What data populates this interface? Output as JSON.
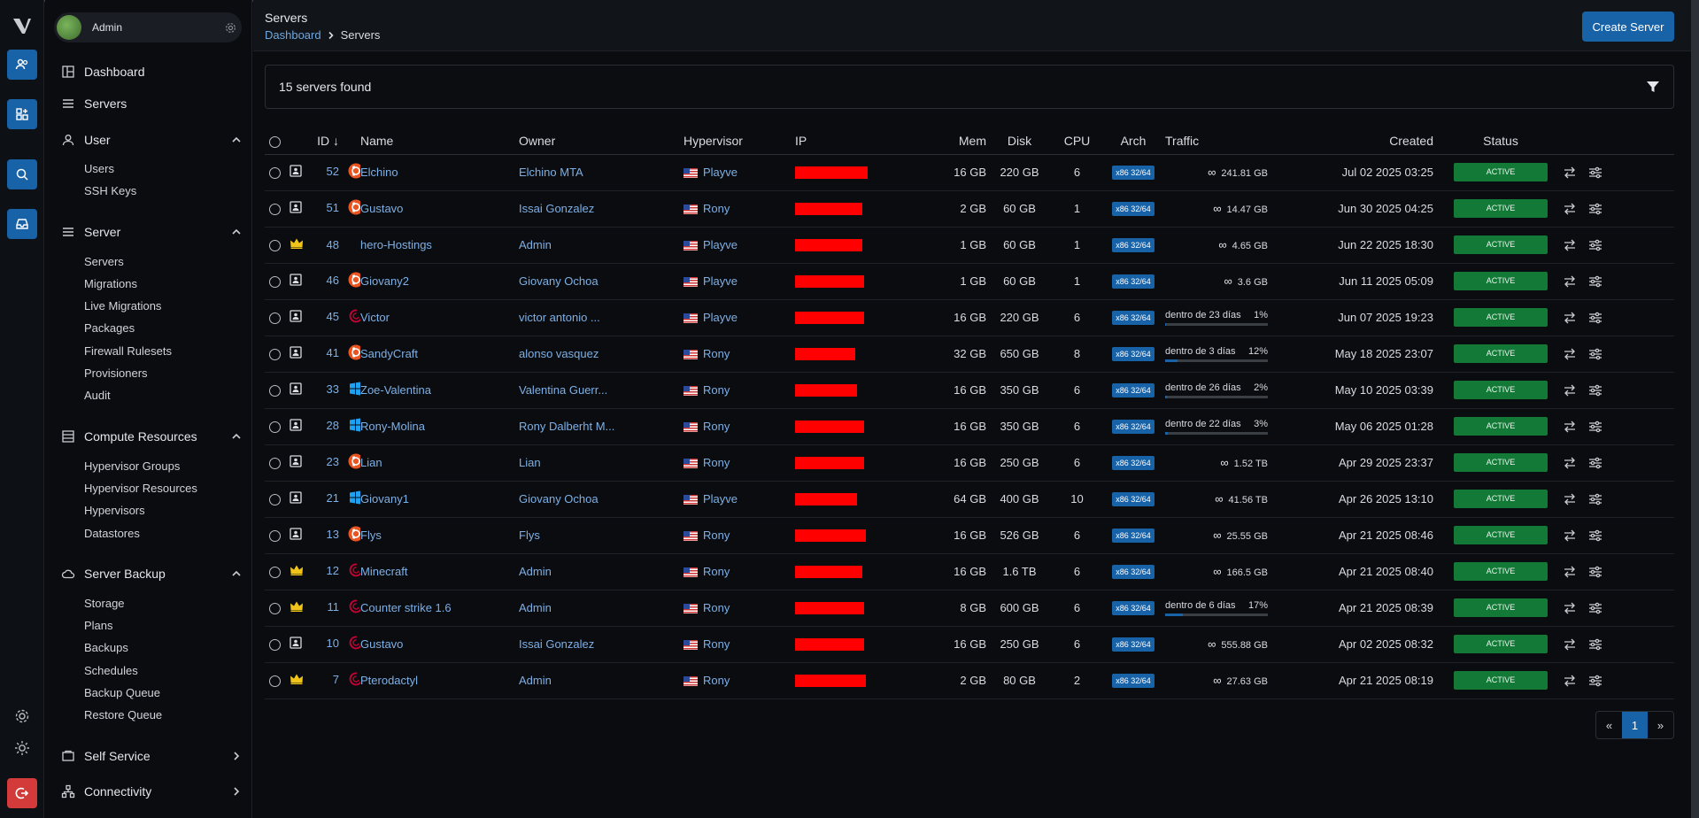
{
  "profile": {
    "name": "Admin"
  },
  "nav": {
    "dashboard": "Dashboard",
    "servers": "Servers",
    "user_section": {
      "label": "User",
      "items": [
        "Users",
        "SSH Keys"
      ]
    },
    "server_section": {
      "label": "Server",
      "items": [
        "Servers",
        "Migrations",
        "Live Migrations",
        "Packages",
        "Firewall Rulesets",
        "Provisioners",
        "Audit"
      ]
    },
    "compute_section": {
      "label": "Compute Resources",
      "items": [
        "Hypervisor Groups",
        "Hypervisor Resources",
        "Hypervisors",
        "Datastores"
      ]
    },
    "backup_section": {
      "label": "Server Backup",
      "items": [
        "Storage",
        "Plans",
        "Backups",
        "Schedules",
        "Backup Queue",
        "Restore Queue"
      ]
    },
    "self_service": "Self Service",
    "connectivity": "Connectivity"
  },
  "header": {
    "title": "Servers",
    "breadcrumb": [
      "Dashboard",
      "Servers"
    ],
    "create_label": "Create Server"
  },
  "filter": {
    "count_text": "15 servers found"
  },
  "table": {
    "columns": {
      "id": "ID",
      "name": "Name",
      "owner": "Owner",
      "hypervisor": "Hypervisor",
      "ip": "IP",
      "mem": "Mem",
      "disk": "Disk",
      "cpu": "CPU",
      "arch": "Arch",
      "traffic": "Traffic",
      "created": "Created",
      "status": "Status"
    },
    "rows": [
      {
        "type": "user",
        "id": "52",
        "os": "ubuntu",
        "name": "Elchino",
        "owner": "Elchino MTA",
        "hv": "Playve",
        "ipw": 82,
        "mem": "16 GB",
        "disk": "220 GB",
        "cpu": "6",
        "arch": "x86 32/64",
        "inf": "∞",
        "traffic": "241.81 GB",
        "created": "Jul 02 2025 03:25",
        "status": "ACTIVE"
      },
      {
        "type": "user",
        "id": "51",
        "os": "ubuntu",
        "name": "Gustavo",
        "owner": "Issai Gonzalez",
        "hv": "Rony",
        "ipw": 76,
        "mem": "2 GB",
        "disk": "60 GB",
        "cpu": "1",
        "arch": "x86 32/64",
        "inf": "∞",
        "traffic": "14.47 GB",
        "created": "Jun 30 2025 04:25",
        "status": "ACTIVE"
      },
      {
        "type": "crown",
        "id": "48",
        "os": "none",
        "name": "hero-Hostings",
        "owner": "Admin",
        "hv": "Playve",
        "ipw": 76,
        "mem": "1 GB",
        "disk": "60 GB",
        "cpu": "1",
        "arch": "x86 32/64",
        "inf": "∞",
        "traffic": "4.65 GB",
        "created": "Jun 22 2025 18:30",
        "status": "ACTIVE"
      },
      {
        "type": "user",
        "id": "46",
        "os": "ubuntu",
        "name": "Giovany2",
        "owner": "Giovany Ochoa",
        "hv": "Playve",
        "ipw": 78,
        "mem": "1 GB",
        "disk": "60 GB",
        "cpu": "1",
        "arch": "x86 32/64",
        "inf": "∞",
        "traffic": "3.6 GB",
        "created": "Jun 11 2025 05:09",
        "status": "ACTIVE"
      },
      {
        "type": "user",
        "id": "45",
        "os": "debian",
        "name": "Victor",
        "owner": "victor antonio ...",
        "hv": "Playve",
        "ipw": 78,
        "mem": "16 GB",
        "disk": "220 GB",
        "cpu": "6",
        "arch": "x86 32/64",
        "inf": "",
        "traffic": "",
        "tlabel": "dentro de 23 días",
        "tpct": "1%",
        "tfill": 1,
        "created": "Jun 07 2025 19:23",
        "status": "ACTIVE"
      },
      {
        "type": "user",
        "id": "41",
        "os": "ubuntu",
        "name": "SandyCraft",
        "owner": "alonso vasquez",
        "hv": "Rony",
        "ipw": 68,
        "mem": "32 GB",
        "disk": "650 GB",
        "cpu": "8",
        "arch": "x86 32/64",
        "inf": "",
        "traffic": "",
        "tlabel": "dentro de 3 días",
        "tpct": "12%",
        "tfill": 12,
        "created": "May 18 2025 23:07",
        "status": "ACTIVE"
      },
      {
        "type": "user",
        "id": "33",
        "os": "windows",
        "name": "Zoe-Valentina",
        "owner": "Valentina Guerr...",
        "hv": "Rony",
        "ipw": 70,
        "mem": "16 GB",
        "disk": "350 GB",
        "cpu": "6",
        "arch": "x86 32/64",
        "inf": "",
        "traffic": "",
        "tlabel": "dentro de 26 días",
        "tpct": "2%",
        "tfill": 2,
        "created": "May 10 2025 03:39",
        "status": "ACTIVE"
      },
      {
        "type": "user",
        "id": "28",
        "os": "windows",
        "name": "Rony-Molina",
        "owner": "Rony Dalberht M...",
        "hv": "Rony",
        "ipw": 78,
        "mem": "16 GB",
        "disk": "350 GB",
        "cpu": "6",
        "arch": "x86 32/64",
        "inf": "",
        "traffic": "",
        "tlabel": "dentro de 22 días",
        "tpct": "3%",
        "tfill": 3,
        "created": "May 06 2025 01:28",
        "status": "ACTIVE"
      },
      {
        "type": "user",
        "id": "23",
        "os": "ubuntu",
        "name": "Lian",
        "owner": "Lian",
        "hv": "Rony",
        "ipw": 78,
        "mem": "16 GB",
        "disk": "250 GB",
        "cpu": "6",
        "arch": "x86 32/64",
        "inf": "∞",
        "traffic": "1.52 TB",
        "created": "Apr 29 2025 23:37",
        "status": "ACTIVE"
      },
      {
        "type": "user",
        "id": "21",
        "os": "windows",
        "name": "Giovany1",
        "owner": "Giovany Ochoa",
        "hv": "Playve",
        "ipw": 70,
        "mem": "64 GB",
        "disk": "400 GB",
        "cpu": "10",
        "arch": "x86 32/64",
        "inf": "∞",
        "traffic": "41.56 TB",
        "created": "Apr 26 2025 13:10",
        "status": "ACTIVE"
      },
      {
        "type": "user",
        "id": "13",
        "os": "ubuntu",
        "name": "Flys",
        "owner": "Flys",
        "hv": "Rony",
        "ipw": 80,
        "mem": "16 GB",
        "disk": "526 GB",
        "cpu": "6",
        "arch": "x86 32/64",
        "inf": "∞",
        "traffic": "25.55 GB",
        "created": "Apr 21 2025 08:46",
        "status": "ACTIVE"
      },
      {
        "type": "crown",
        "id": "12",
        "os": "debian",
        "name": "Minecraft",
        "owner": "Admin",
        "hv": "Rony",
        "ipw": 76,
        "mem": "16 GB",
        "disk": "1.6 TB",
        "cpu": "6",
        "arch": "x86 32/64",
        "inf": "∞",
        "traffic": "166.5 GB",
        "created": "Apr 21 2025 08:40",
        "status": "ACTIVE"
      },
      {
        "type": "crown",
        "id": "11",
        "os": "debian",
        "name": "Counter strike 1.6",
        "owner": "Admin",
        "hv": "Rony",
        "ipw": 78,
        "mem": "8 GB",
        "disk": "600 GB",
        "cpu": "6",
        "arch": "x86 32/64",
        "inf": "",
        "traffic": "",
        "tlabel": "dentro de 6 días",
        "tpct": "17%",
        "tfill": 17,
        "created": "Apr 21 2025 08:39",
        "status": "ACTIVE"
      },
      {
        "type": "user",
        "id": "10",
        "os": "debian",
        "name": "Gustavo",
        "owner": "Issai Gonzalez",
        "hv": "Rony",
        "ipw": 78,
        "mem": "16 GB",
        "disk": "250 GB",
        "cpu": "6",
        "arch": "x86 32/64",
        "inf": "∞",
        "traffic": "555.88 GB",
        "created": "Apr 02 2025 08:32",
        "status": "ACTIVE"
      },
      {
        "type": "crown",
        "id": "7",
        "os": "debian",
        "name": "Pterodactyl",
        "owner": "Admin",
        "hv": "Rony",
        "ipw": 80,
        "mem": "2 GB",
        "disk": "80 GB",
        "cpu": "2",
        "arch": "x86 32/64",
        "inf": "∞",
        "traffic": "27.63 GB",
        "created": "Apr 21 2025 08:19",
        "status": "ACTIVE"
      }
    ]
  },
  "pager": {
    "prev": "«",
    "page": "1",
    "next": "»"
  },
  "colors": {
    "accent": "#1862a8",
    "status_active": "#127a36",
    "danger": "#d33a3a",
    "redaction": "#ff0000"
  }
}
